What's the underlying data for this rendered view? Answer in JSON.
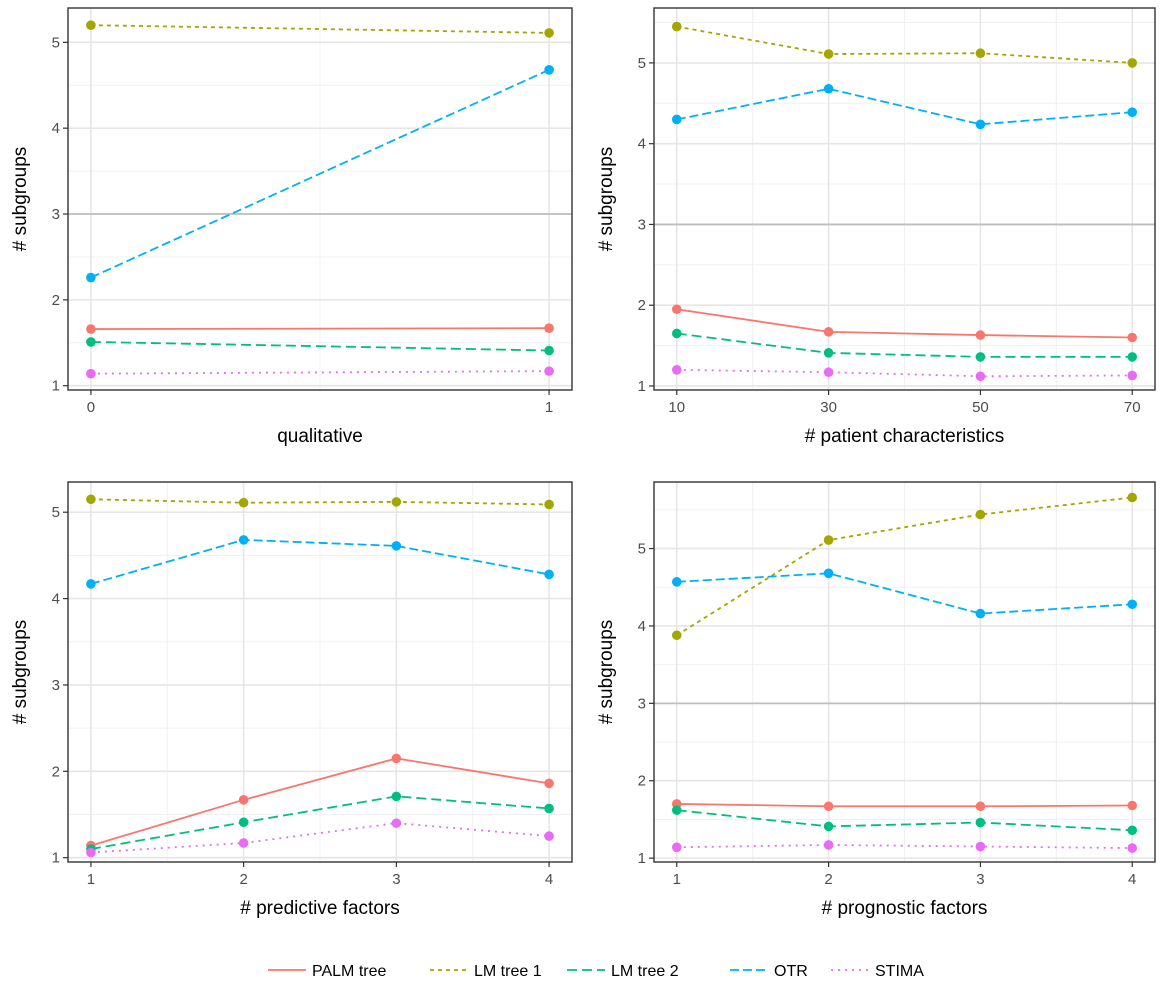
{
  "legend": {
    "position": "bottom",
    "items": [
      {
        "name": "PALM tree",
        "color": "#F8766D",
        "dash": "solid"
      },
      {
        "name": "LM tree 1",
        "color": "#A3A500",
        "dash": "dotted"
      },
      {
        "name": "LM tree 2",
        "color": "#00BF7D",
        "dash": "dashed"
      },
      {
        "name": "OTR",
        "color": "#00B0F6",
        "dash": "longdash"
      },
      {
        "name": "STIMA",
        "color": "#E76BF3",
        "dash": "dot"
      }
    ]
  },
  "chart_data": [
    {
      "type": "line",
      "xlabel": "qualitative",
      "ylabel": "# subgroups",
      "x": [
        0,
        1
      ],
      "xticks": [
        "0",
        "1"
      ],
      "xlim": [
        -0.05,
        1.05
      ],
      "ylim": [
        0.95,
        5.4
      ],
      "yticks": [
        1,
        2,
        3,
        4,
        5
      ],
      "hline": 3,
      "grid": true,
      "series": [
        {
          "name": "PALM tree",
          "values": [
            1.66,
            1.67
          ]
        },
        {
          "name": "LM tree 1",
          "values": [
            5.2,
            5.11
          ]
        },
        {
          "name": "LM tree 2",
          "values": [
            1.51,
            1.41
          ]
        },
        {
          "name": "OTR",
          "values": [
            2.26,
            4.68
          ]
        },
        {
          "name": "STIMA",
          "values": [
            1.14,
            1.17
          ]
        }
      ]
    },
    {
      "type": "line",
      "xlabel": "# patient characteristics",
      "ylabel": "# subgroups",
      "x": [
        10,
        30,
        50,
        70
      ],
      "xticks": [
        "10",
        "30",
        "50",
        "70"
      ],
      "xlim": [
        7,
        73
      ],
      "ylim": [
        0.95,
        5.68
      ],
      "yticks": [
        1,
        2,
        3,
        4,
        5
      ],
      "hline": 3,
      "grid": true,
      "series": [
        {
          "name": "PALM tree",
          "values": [
            1.95,
            1.67,
            1.63,
            1.6
          ]
        },
        {
          "name": "LM tree 1",
          "values": [
            5.45,
            5.11,
            5.12,
            5.0
          ]
        },
        {
          "name": "LM tree 2",
          "values": [
            1.65,
            1.41,
            1.36,
            1.36
          ]
        },
        {
          "name": "OTR",
          "values": [
            4.3,
            4.68,
            4.24,
            4.39
          ]
        },
        {
          "name": "STIMA",
          "values": [
            1.2,
            1.17,
            1.12,
            1.13
          ]
        }
      ]
    },
    {
      "type": "line",
      "xlabel": "# predictive factors",
      "ylabel": "# subgroups",
      "x": [
        1,
        2,
        3,
        4
      ],
      "xticks": [
        "1",
        "2",
        "3",
        "4"
      ],
      "xlim": [
        0.85,
        4.15
      ],
      "ylim": [
        0.95,
        5.35
      ],
      "yticks": [
        1,
        2,
        3,
        4,
        5
      ],
      "hline": null,
      "grid": true,
      "series": [
        {
          "name": "PALM tree",
          "values": [
            1.14,
            1.67,
            2.15,
            1.86
          ]
        },
        {
          "name": "LM tree 1",
          "values": [
            5.15,
            5.11,
            5.12,
            5.09
          ]
        },
        {
          "name": "LM tree 2",
          "values": [
            1.1,
            1.41,
            1.71,
            1.57
          ]
        },
        {
          "name": "OTR",
          "values": [
            4.17,
            4.68,
            4.61,
            4.28
          ]
        },
        {
          "name": "STIMA",
          "values": [
            1.06,
            1.17,
            1.4,
            1.25
          ]
        }
      ]
    },
    {
      "type": "line",
      "xlabel": "# prognostic factors",
      "ylabel": "# subgroups",
      "x": [
        1,
        2,
        3,
        4
      ],
      "xticks": [
        "1",
        "2",
        "3",
        "4"
      ],
      "xlim": [
        0.85,
        4.15
      ],
      "ylim": [
        0.95,
        5.86
      ],
      "yticks": [
        1,
        2,
        3,
        4,
        5
      ],
      "hline": 3,
      "grid": true,
      "series": [
        {
          "name": "PALM tree",
          "values": [
            1.7,
            1.67,
            1.67,
            1.68
          ]
        },
        {
          "name": "LM tree 1",
          "values": [
            3.88,
            5.11,
            5.44,
            5.66
          ]
        },
        {
          "name": "LM tree 2",
          "values": [
            1.62,
            1.41,
            1.46,
            1.36
          ]
        },
        {
          "name": "OTR",
          "values": [
            4.57,
            4.68,
            4.16,
            4.28
          ]
        },
        {
          "name": "STIMA",
          "values": [
            1.14,
            1.17,
            1.15,
            1.13
          ]
        }
      ]
    }
  ]
}
